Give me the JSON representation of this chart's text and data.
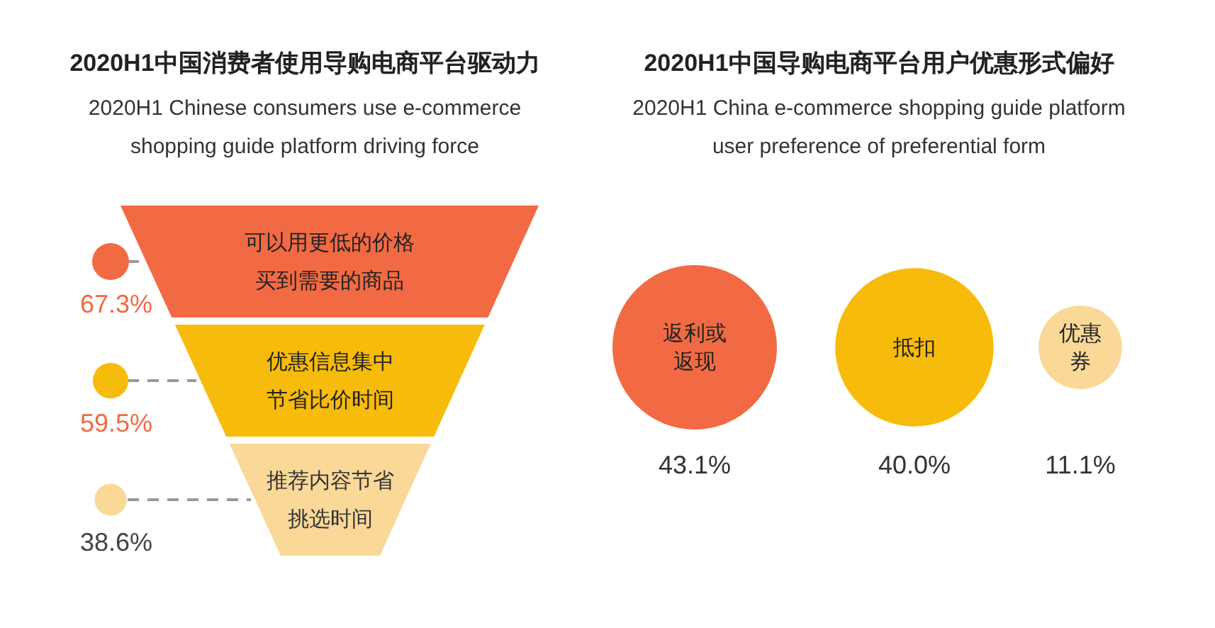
{
  "chart_data": [
    {
      "type": "other",
      "title": "2020H1中国消费者使用导购电商平台驱动力",
      "subtitle": "2020H1 Chinese consumers use e-commerce shopping guide platform driving force",
      "categories": [
        "可以用更低的价格买到需要的商品",
        "优惠信息集中节省比价时间",
        "推荐内容节省挑选时间"
      ],
      "values": [
        67.3,
        59.5,
        38.6
      ],
      "value_labels": [
        "67.3%",
        "59.5%",
        "38.6%"
      ],
      "colors": [
        "#f26a43",
        "#f7bb0c",
        "#f9d898"
      ]
    },
    {
      "type": "other",
      "title": "2020H1中国导购电商平台用户优惠形式偏好",
      "subtitle": "2020H1 China e-commerce shopping guide platform user preference of preferential form",
      "categories": [
        "返利或返现",
        "抵扣",
        "优惠券"
      ],
      "values": [
        43.1,
        40.0,
        11.1
      ],
      "value_labels": [
        "43.1%",
        "40.0%",
        "11.1%"
      ],
      "colors": [
        "#f26a43",
        "#f7bb0c",
        "#f9d898"
      ]
    }
  ]
}
